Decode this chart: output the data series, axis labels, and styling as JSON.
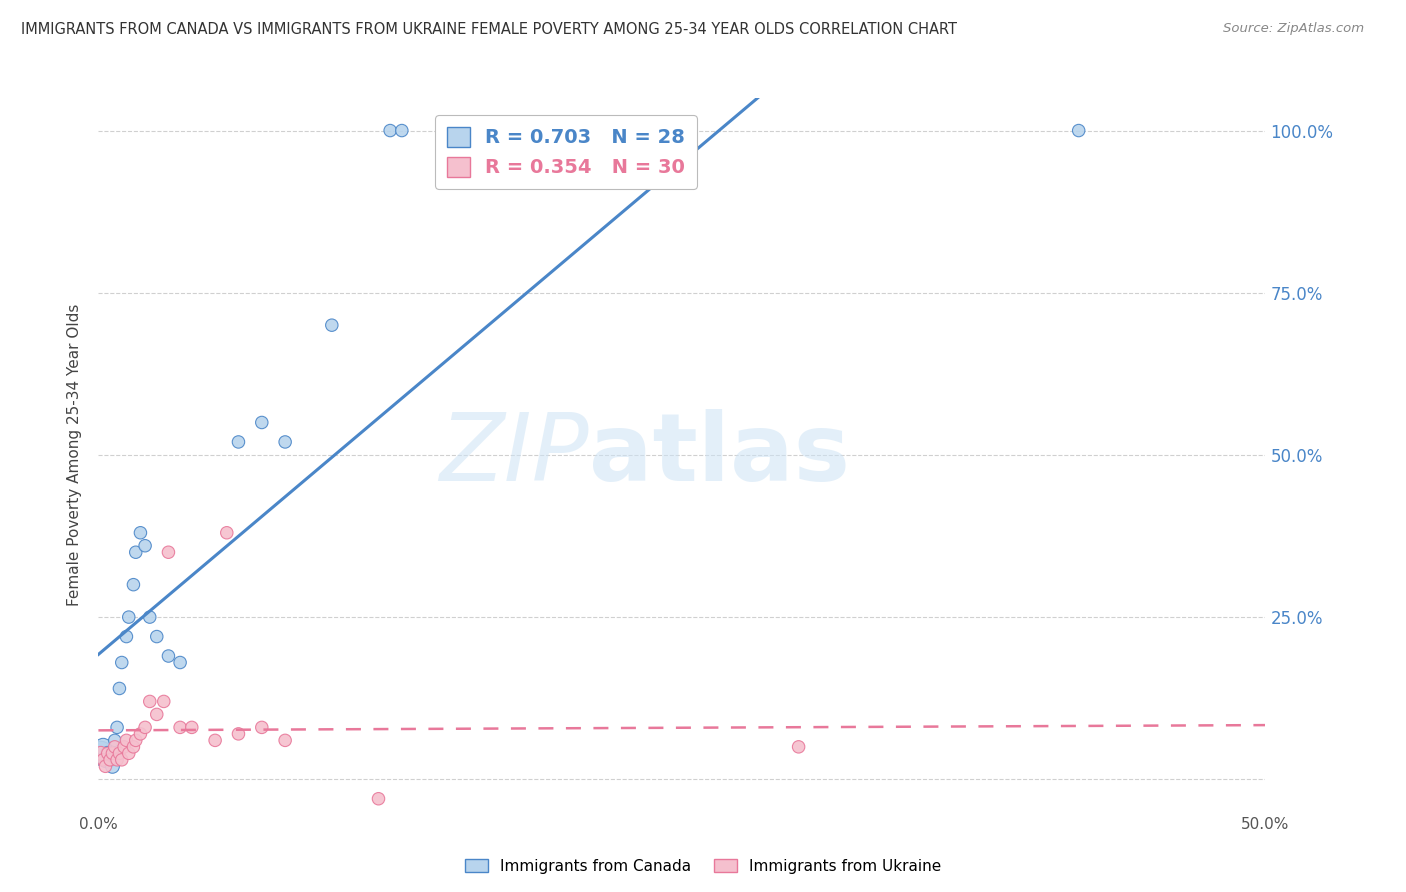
{
  "title": "IMMIGRANTS FROM CANADA VS IMMIGRANTS FROM UKRAINE FEMALE POVERTY AMONG 25-34 YEAR OLDS CORRELATION CHART",
  "source": "Source: ZipAtlas.com",
  "ylabel": "Female Poverty Among 25-34 Year Olds",
  "xlim": [
    0.0,
    0.5
  ],
  "ylim": [
    -0.05,
    1.05
  ],
  "yticks_right": [
    0.25,
    0.5,
    0.75,
    1.0
  ],
  "yticklabels_right": [
    "25.0%",
    "50.0%",
    "75.0%",
    "100.0%"
  ],
  "canada_R": 0.703,
  "canada_N": 28,
  "ukraine_R": 0.354,
  "ukraine_N": 30,
  "canada_color": "#b8d4ed",
  "ukraine_color": "#f5c0ce",
  "canada_line_color": "#4a86c8",
  "ukraine_line_color": "#e8789a",
  "legend_label_canada": "Immigrants from Canada",
  "legend_label_ukraine": "Immigrants from Ukraine",
  "watermark_zip": "ZIP",
  "watermark_atlas": "atlas",
  "bg_color": "#ffffff",
  "grid_color": "#d0d0d0",
  "canada_x": [
    0.001,
    0.002,
    0.003,
    0.004,
    0.005,
    0.006,
    0.007,
    0.008,
    0.009,
    0.01,
    0.012,
    0.013,
    0.015,
    0.016,
    0.018,
    0.02,
    0.022,
    0.025,
    0.03,
    0.035,
    0.06,
    0.07,
    0.08,
    0.1,
    0.125,
    0.13,
    0.16,
    0.42
  ],
  "canada_y": [
    0.04,
    0.05,
    0.03,
    0.04,
    0.03,
    0.02,
    0.06,
    0.08,
    0.14,
    0.18,
    0.22,
    0.25,
    0.3,
    0.35,
    0.38,
    0.36,
    0.25,
    0.22,
    0.19,
    0.18,
    0.52,
    0.55,
    0.52,
    0.7,
    1.0,
    1.0,
    1.0,
    1.0
  ],
  "canada_sizes": [
    300,
    150,
    120,
    100,
    100,
    100,
    80,
    80,
    80,
    80,
    80,
    80,
    80,
    80,
    80,
    80,
    80,
    80,
    80,
    80,
    80,
    80,
    80,
    80,
    80,
    80,
    80,
    80
  ],
  "ukraine_x": [
    0.001,
    0.002,
    0.003,
    0.004,
    0.005,
    0.006,
    0.007,
    0.008,
    0.009,
    0.01,
    0.011,
    0.012,
    0.013,
    0.015,
    0.016,
    0.018,
    0.02,
    0.022,
    0.025,
    0.028,
    0.03,
    0.035,
    0.04,
    0.05,
    0.055,
    0.06,
    0.07,
    0.08,
    0.12,
    0.3
  ],
  "ukraine_y": [
    0.04,
    0.03,
    0.02,
    0.04,
    0.03,
    0.04,
    0.05,
    0.03,
    0.04,
    0.03,
    0.05,
    0.06,
    0.04,
    0.05,
    0.06,
    0.07,
    0.08,
    0.12,
    0.1,
    0.12,
    0.35,
    0.08,
    0.08,
    0.06,
    0.38,
    0.07,
    0.08,
    0.06,
    -0.03,
    0.05
  ],
  "ukraine_sizes": [
    100,
    80,
    80,
    80,
    80,
    80,
    80,
    80,
    80,
    80,
    80,
    80,
    80,
    80,
    80,
    80,
    80,
    80,
    80,
    80,
    80,
    80,
    80,
    80,
    80,
    80,
    80,
    80,
    80,
    80
  ]
}
